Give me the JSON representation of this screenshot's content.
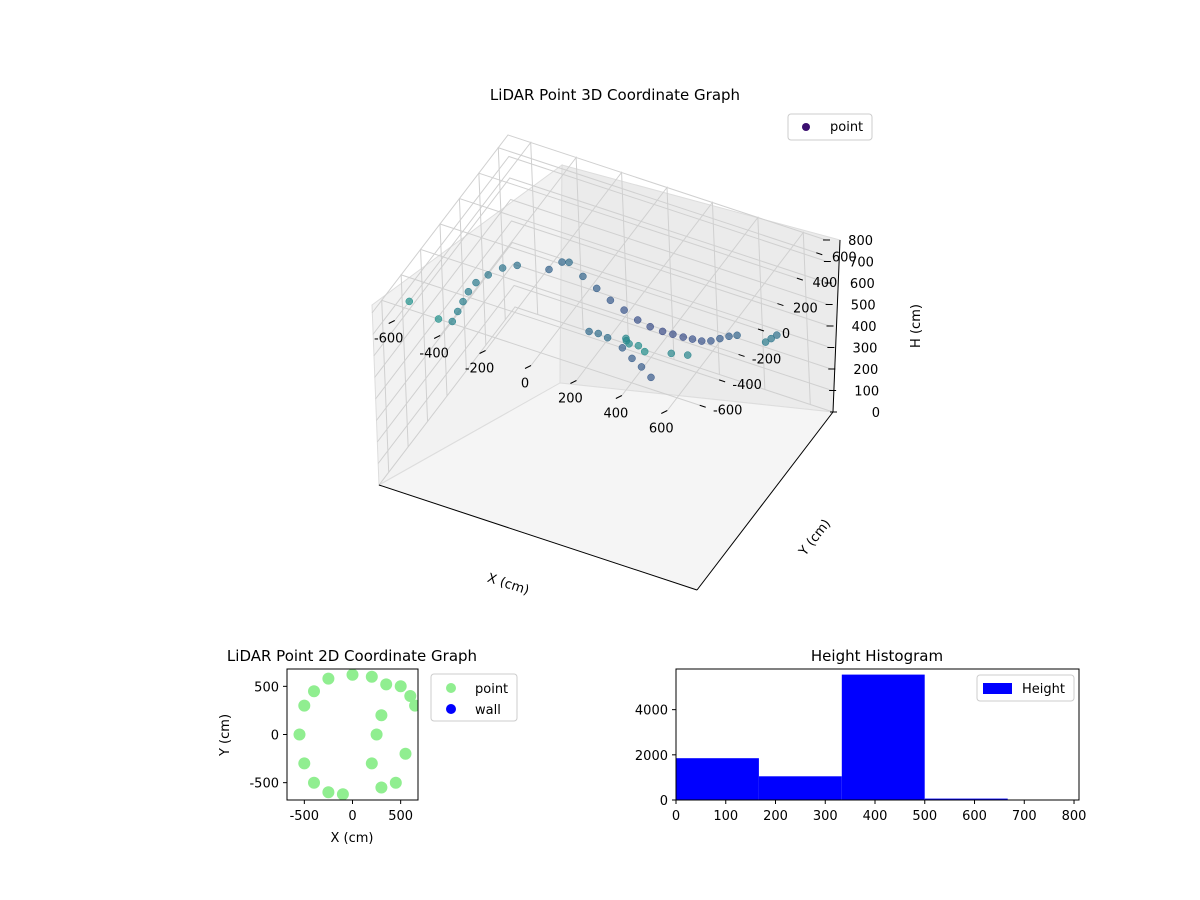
{
  "chart_data": [
    {
      "type": "scatter",
      "title": "LiDAR Point 3D Coordinate Graph",
      "xlabel": "X (cm)",
      "ylabel": "Y (cm)",
      "zlabel": "H (cm)",
      "xlim": [
        -700,
        700
      ],
      "ylim": [
        -700,
        700
      ],
      "zlim": [
        800,
        0
      ],
      "x_ticks": [
        -600,
        -400,
        -200,
        0,
        200,
        400,
        600
      ],
      "y_ticks": [
        -600,
        -400,
        -200,
        0,
        200,
        400,
        600
      ],
      "z_ticks": [
        0,
        100,
        200,
        300,
        400,
        500,
        600,
        700,
        800
      ],
      "legend": [
        {
          "label": "point",
          "color": "#3b0f6f"
        }
      ],
      "legend_position": "top-right",
      "grid": true,
      "colormap": "viridis",
      "series": [
        {
          "name": "point",
          "points": [
            [
              -450,
              500,
              380
            ],
            [
              -400,
              520,
              420
            ],
            [
              -350,
              480,
              460
            ],
            [
              -300,
              500,
              400
            ],
            [
              -250,
              520,
              350
            ],
            [
              -200,
              540,
              300
            ],
            [
              -150,
              560,
              260
            ],
            [
              -100,
              580,
              220
            ],
            [
              -50,
              590,
              200
            ],
            [
              0,
              600,
              190
            ],
            [
              50,
              590,
              200
            ],
            [
              100,
              580,
              210
            ],
            [
              150,
              560,
              230
            ],
            [
              200,
              540,
              250
            ],
            [
              250,
              520,
              280
            ],
            [
              300,
              500,
              320
            ],
            [
              350,
              480,
              360
            ],
            [
              400,
              450,
              400
            ],
            [
              -500,
              300,
              500
            ],
            [
              -520,
              200,
              540
            ],
            [
              -540,
              100,
              560
            ],
            [
              -550,
              0,
              580
            ],
            [
              -540,
              -100,
              600
            ],
            [
              -520,
              -200,
              620
            ],
            [
              -500,
              -300,
              640
            ],
            [
              -480,
              -400,
              660
            ],
            [
              0,
              200,
              350
            ],
            [
              50,
              180,
              330
            ],
            [
              100,
              160,
              320
            ],
            [
              150,
              140,
              300
            ],
            [
              -100,
              100,
              450
            ],
            [
              -50,
              80,
              470
            ],
            [
              0,
              60,
              480
            ],
            [
              200,
              -200,
              700
            ],
            [
              220,
              -240,
              720
            ],
            [
              250,
              -280,
              740
            ],
            [
              300,
              -300,
              760
            ],
            [
              350,
              -350,
              780
            ],
            [
              400,
              -200,
              700
            ],
            [
              450,
              -150,
              680
            ],
            [
              -600,
              -550,
              800
            ],
            [
              -450,
              -600,
              800
            ],
            [
              600,
              400,
              500
            ],
            [
              620,
              300,
              550
            ],
            [
              640,
              200,
              600
            ]
          ]
        }
      ]
    },
    {
      "type": "scatter",
      "title": "LiDAR Point 2D Coordinate Graph",
      "xlabel": "X (cm)",
      "ylabel": "Y (cm)",
      "xlim": [
        -680,
        680
      ],
      "ylim": [
        -680,
        680
      ],
      "x_ticks": [
        -500,
        0,
        500
      ],
      "y_ticks": [
        -500,
        0,
        500
      ],
      "legend": [
        {
          "label": "point",
          "color": "#90ee90"
        },
        {
          "label": "wall",
          "color": "#0000ff"
        }
      ],
      "legend_position": "outside right",
      "grid": false,
      "series": [
        {
          "name": "point",
          "color": "#90ee90",
          "points": [
            [
              -550,
              0
            ],
            [
              -500,
              300
            ],
            [
              -400,
              450
            ],
            [
              -250,
              580
            ],
            [
              0,
              620
            ],
            [
              200,
              600
            ],
            [
              350,
              520
            ],
            [
              -500,
              -300
            ],
            [
              -400,
              -500
            ],
            [
              -250,
              -600
            ],
            [
              -100,
              -620
            ],
            [
              300,
              -550
            ],
            [
              450,
              -500
            ],
            [
              550,
              -200
            ],
            [
              600,
              400
            ],
            [
              650,
              300
            ],
            [
              500,
              500
            ],
            [
              300,
              200
            ],
            [
              250,
              0
            ],
            [
              200,
              -300
            ]
          ]
        },
        {
          "name": "wall",
          "color": "#0000ff",
          "points": []
        }
      ]
    },
    {
      "type": "bar",
      "title": "Height Histogram",
      "xlabel": "",
      "ylabel": "",
      "xlim": [
        0,
        810
      ],
      "ylim": [
        0,
        5800
      ],
      "x_ticks": [
        0,
        100,
        200,
        300,
        400,
        500,
        600,
        700,
        800
      ],
      "y_ticks": [
        0,
        2000,
        4000
      ],
      "bins": [
        {
          "start": 0,
          "end": 166.7,
          "value": 1850
        },
        {
          "start": 166.7,
          "end": 333.3,
          "value": 1050
        },
        {
          "start": 333.3,
          "end": 500,
          "value": 5550
        },
        {
          "start": 500,
          "end": 666.7,
          "value": 60
        },
        {
          "start": 666.7,
          "end": 833.3,
          "value": 0
        }
      ],
      "legend": [
        {
          "label": "Height",
          "color": "#0000ff"
        }
      ],
      "legend_position": "top-right",
      "grid": false,
      "bar_color": "#0000ff"
    }
  ]
}
